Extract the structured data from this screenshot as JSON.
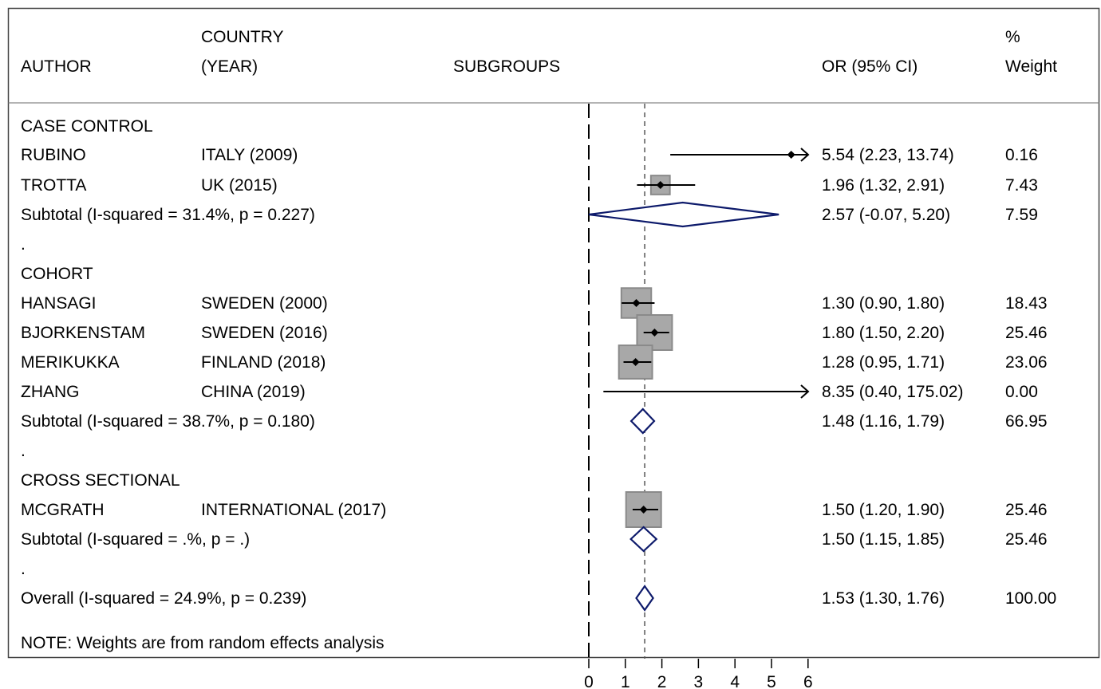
{
  "header": {
    "author": "AUTHOR",
    "country_line1": "COUNTRY",
    "country_line2": "(YEAR)",
    "subgroups": "SUBGROUPS",
    "or_ci": "OR (95% CI)",
    "weight_line1": "%",
    "weight_line2": "Weight"
  },
  "note": "NOTE: Weights are from random effects analysis",
  "chart_data": {
    "type": "forest",
    "xticks": [
      0,
      1,
      2,
      3,
      4,
      5,
      6
    ],
    "xlim": [
      0,
      6
    ],
    "null_line": 0,
    "overall_line": 1.53,
    "rows": [
      {
        "kind": "group",
        "label": "CASE CONTROL"
      },
      {
        "kind": "study",
        "author": "RUBINO",
        "country": "ITALY (2009)",
        "or": 5.54,
        "lo": 2.23,
        "hi": 13.74,
        "ci_text": "5.54 (2.23, 13.74)",
        "weight": 0.16,
        "weight_text": "0.16"
      },
      {
        "kind": "study",
        "author": "TROTTA",
        "country": "UK (2015)",
        "or": 1.96,
        "lo": 1.32,
        "hi": 2.91,
        "ci_text": "1.96 (1.32, 2.91)",
        "weight": 7.43,
        "weight_text": "7.43"
      },
      {
        "kind": "subtotal",
        "label": "Subtotal  (I-squared = 31.4%, p = 0.227)",
        "or": 2.57,
        "lo": -0.07,
        "hi": 5.2,
        "ci_text": "2.57 (-0.07, 5.20)",
        "weight_text": "7.59"
      },
      {
        "kind": "spacer",
        "label": "."
      },
      {
        "kind": "group",
        "label": "COHORT"
      },
      {
        "kind": "study",
        "author": "HANSAGI",
        "country": "SWEDEN (2000)",
        "or": 1.3,
        "lo": 0.9,
        "hi": 1.8,
        "ci_text": "1.30 (0.90, 1.80)",
        "weight": 18.43,
        "weight_text": "18.43"
      },
      {
        "kind": "study",
        "author": "BJORKENSTAM",
        "country": "SWEDEN (2016)",
        "or": 1.8,
        "lo": 1.5,
        "hi": 2.2,
        "ci_text": "1.80 (1.50, 2.20)",
        "weight": 25.46,
        "weight_text": "25.46"
      },
      {
        "kind": "study",
        "author": "MERIKUKKA",
        "country": "FINLAND (2018)",
        "or": 1.28,
        "lo": 0.95,
        "hi": 1.71,
        "ci_text": "1.28 (0.95, 1.71)",
        "weight": 23.06,
        "weight_text": "23.06"
      },
      {
        "kind": "study",
        "author": "ZHANG",
        "country": "CHINA (2019)",
        "or": 8.35,
        "lo": 0.4,
        "hi": 175.02,
        "ci_text": "8.35 (0.40, 175.02)",
        "weight": 0.0,
        "weight_text": "0.00"
      },
      {
        "kind": "subtotal",
        "label": "Subtotal  (I-squared = 38.7%, p = 0.180)",
        "or": 1.48,
        "lo": 1.16,
        "hi": 1.79,
        "ci_text": "1.48 (1.16, 1.79)",
        "weight_text": "66.95"
      },
      {
        "kind": "spacer",
        "label": "."
      },
      {
        "kind": "group",
        "label": "CROSS SECTIONAL"
      },
      {
        "kind": "study",
        "author": "MCGRATH",
        "country": "INTERNATIONAL (2017)",
        "or": 1.5,
        "lo": 1.2,
        "hi": 1.9,
        "ci_text": "1.50 (1.20, 1.90)",
        "weight": 25.46,
        "weight_text": "25.46"
      },
      {
        "kind": "subtotal",
        "label": "Subtotal  (I-squared = .%, p = .)",
        "or": 1.5,
        "lo": 1.15,
        "hi": 1.85,
        "ci_text": "1.50 (1.15, 1.85)",
        "weight_text": "25.46"
      },
      {
        "kind": "spacer",
        "label": "."
      },
      {
        "kind": "overall",
        "label": "Overall  (I-squared = 24.9%, p = 0.239)",
        "or": 1.53,
        "lo": 1.3,
        "hi": 1.76,
        "ci_text": "1.53 (1.30, 1.76)",
        "weight_text": "100.00"
      }
    ]
  }
}
